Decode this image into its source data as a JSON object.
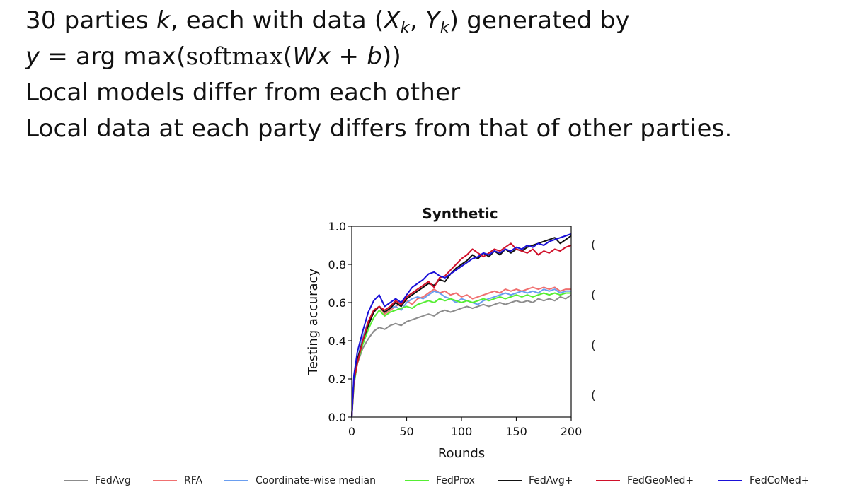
{
  "slide": {
    "line1": {
      "a": "30 parties ",
      "k": "k",
      "b": ", each with data (",
      "X": "X",
      "sub1": "k",
      "comma": ", ",
      "Y": "Y",
      "sub2": "k",
      "c": ") generated by"
    },
    "line2": {
      "y": "y",
      "eq": " = arg max(",
      "softmax": "softmax",
      "paren": "(",
      "W": "W",
      "x": "x",
      "plus": " + ",
      "b": "b",
      "close": "))"
    },
    "line3": "Local models differ from each other",
    "line4": "Local data at each party differs from that of other parties."
  },
  "cut_glyphs": [
    "(",
    "(",
    "(",
    "("
  ],
  "chart_data": {
    "type": "line",
    "title": "Synthetic",
    "xlabel": "Rounds",
    "ylabel": "Testing accuracy",
    "xlim": [
      0,
      200
    ],
    "ylim": [
      0,
      1.0
    ],
    "xticks": [
      0,
      50,
      100,
      150,
      200
    ],
    "yticks": [
      0.0,
      0.2,
      0.4,
      0.6,
      0.8,
      1.0
    ],
    "ytick_labels": [
      "0.0",
      "0.2",
      "0.4",
      "0.6",
      "0.8",
      "1.0"
    ],
    "grid": false,
    "legend_position": "bottom",
    "x": [
      0,
      2,
      5,
      10,
      15,
      20,
      25,
      30,
      35,
      40,
      45,
      50,
      55,
      60,
      65,
      70,
      75,
      80,
      85,
      90,
      95,
      100,
      105,
      110,
      115,
      120,
      125,
      130,
      135,
      140,
      145,
      150,
      155,
      160,
      165,
      170,
      175,
      180,
      185,
      190,
      195,
      200
    ],
    "series": [
      {
        "name": "FedAvg",
        "color": "#8c8c8c",
        "values": [
          0.0,
          0.18,
          0.28,
          0.36,
          0.41,
          0.45,
          0.47,
          0.46,
          0.48,
          0.49,
          0.48,
          0.5,
          0.51,
          0.52,
          0.53,
          0.54,
          0.53,
          0.55,
          0.56,
          0.55,
          0.56,
          0.57,
          0.58,
          0.57,
          0.58,
          0.59,
          0.58,
          0.59,
          0.6,
          0.59,
          0.6,
          0.61,
          0.6,
          0.61,
          0.6,
          0.62,
          0.61,
          0.62,
          0.61,
          0.63,
          0.62,
          0.64
        ]
      },
      {
        "name": "RFA",
        "color": "#f07070",
        "values": [
          0.0,
          0.2,
          0.3,
          0.4,
          0.48,
          0.55,
          0.58,
          0.54,
          0.56,
          0.58,
          0.6,
          0.61,
          0.59,
          0.62,
          0.63,
          0.65,
          0.67,
          0.65,
          0.66,
          0.64,
          0.65,
          0.63,
          0.64,
          0.62,
          0.63,
          0.64,
          0.65,
          0.66,
          0.65,
          0.67,
          0.66,
          0.67,
          0.66,
          0.67,
          0.68,
          0.67,
          0.68,
          0.67,
          0.68,
          0.66,
          0.67,
          0.67
        ]
      },
      {
        "name": "Coordinate-wise median",
        "color": "#6a9ef0",
        "values": [
          0.0,
          0.2,
          0.3,
          0.42,
          0.5,
          0.56,
          0.58,
          0.55,
          0.57,
          0.58,
          0.56,
          0.6,
          0.62,
          0.63,
          0.62,
          0.64,
          0.66,
          0.65,
          0.63,
          0.62,
          0.6,
          0.62,
          0.61,
          0.6,
          0.59,
          0.61,
          0.62,
          0.63,
          0.64,
          0.65,
          0.64,
          0.65,
          0.66,
          0.65,
          0.66,
          0.65,
          0.67,
          0.66,
          0.67,
          0.65,
          0.66,
          0.66
        ]
      },
      {
        "name": "FedProx",
        "color": "#55ee33",
        "values": [
          0.0,
          0.17,
          0.28,
          0.38,
          0.46,
          0.52,
          0.56,
          0.53,
          0.55,
          0.56,
          0.57,
          0.58,
          0.57,
          0.59,
          0.6,
          0.61,
          0.6,
          0.62,
          0.61,
          0.62,
          0.61,
          0.6,
          0.61,
          0.6,
          0.61,
          0.62,
          0.61,
          0.62,
          0.63,
          0.62,
          0.63,
          0.64,
          0.63,
          0.64,
          0.63,
          0.64,
          0.65,
          0.64,
          0.65,
          0.64,
          0.65,
          0.65
        ]
      },
      {
        "name": "FedAvg+",
        "color": "#111111",
        "values": [
          0.0,
          0.2,
          0.3,
          0.4,
          0.48,
          0.55,
          0.58,
          0.55,
          0.57,
          0.6,
          0.58,
          0.62,
          0.64,
          0.66,
          0.68,
          0.7,
          0.69,
          0.72,
          0.71,
          0.75,
          0.78,
          0.8,
          0.82,
          0.85,
          0.83,
          0.86,
          0.84,
          0.87,
          0.85,
          0.88,
          0.86,
          0.88,
          0.87,
          0.89,
          0.9,
          0.91,
          0.92,
          0.93,
          0.94,
          0.91,
          0.93,
          0.95
        ]
      },
      {
        "name": "FedGeoMed+",
        "color": "#d0102a",
        "values": [
          0.0,
          0.19,
          0.28,
          0.4,
          0.5,
          0.56,
          0.58,
          0.56,
          0.58,
          0.61,
          0.59,
          0.63,
          0.65,
          0.67,
          0.69,
          0.71,
          0.68,
          0.73,
          0.74,
          0.77,
          0.8,
          0.83,
          0.85,
          0.88,
          0.86,
          0.84,
          0.86,
          0.88,
          0.87,
          0.89,
          0.91,
          0.88,
          0.87,
          0.86,
          0.88,
          0.85,
          0.87,
          0.86,
          0.88,
          0.87,
          0.89,
          0.9
        ]
      },
      {
        "name": "FedCoMed+",
        "color": "#1a10d8",
        "values": [
          0.0,
          0.22,
          0.34,
          0.45,
          0.55,
          0.61,
          0.64,
          0.58,
          0.6,
          0.62,
          0.6,
          0.64,
          0.68,
          0.7,
          0.72,
          0.75,
          0.76,
          0.74,
          0.73,
          0.75,
          0.77,
          0.79,
          0.81,
          0.83,
          0.84,
          0.86,
          0.85,
          0.87,
          0.86,
          0.88,
          0.87,
          0.89,
          0.88,
          0.9,
          0.89,
          0.91,
          0.9,
          0.92,
          0.93,
          0.94,
          0.95,
          0.96
        ]
      }
    ]
  }
}
